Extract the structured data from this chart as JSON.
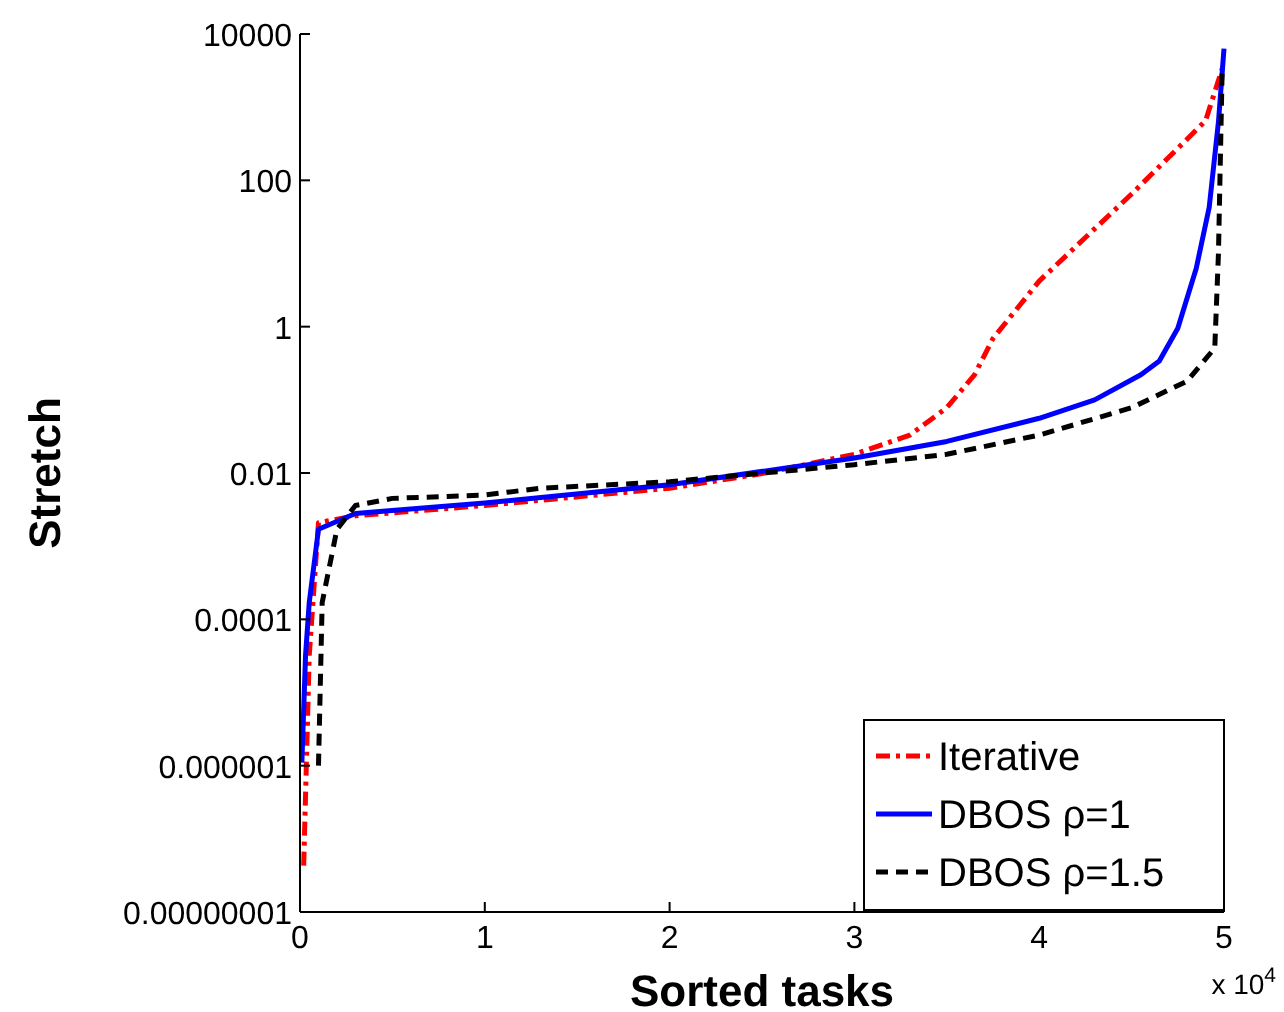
{
  "chart_data": {
    "type": "line",
    "xlabel": "Sorted tasks",
    "ylabel": "Stretch",
    "log": true,
    "legend": "bottom right",
    "xlim": [
      0,
      5
    ],
    "xticks": [
      0,
      1,
      2,
      3,
      4,
      5
    ],
    "ylim": [
      1e-08,
      10000
    ],
    "yticks": [
      {
        "value": 1e-08,
        "label": "0.00000001"
      },
      {
        "value": 1e-06,
        "label": "0.000001"
      },
      {
        "value": 0.0001,
        "label": "0.0001"
      },
      {
        "value": 0.01,
        "label": "0.01"
      },
      1,
      100,
      10000
    ],
    "annotations": [
      "x 10$^{4}$"
    ],
    "series": [
      {
        "name": "Iterative",
        "color": "#ff0000",
        "line_style": "dashdot",
        "x": [
          0.02,
          0.05,
          0.1,
          0.3,
          1,
          2,
          2.5,
          3,
          3.3,
          3.5,
          3.65,
          3.75,
          4,
          4.5,
          4.9,
          5
        ],
        "values": [
          4.3e-08,
          3.2e-05,
          0.0021,
          0.0026,
          0.0036,
          0.0062,
          0.0098,
          0.018,
          0.033,
          0.078,
          0.22,
          0.69,
          4.2,
          65,
          650,
          4000
        ]
      },
      {
        "name": "DBOS ρ=1",
        "color": "#0000ff",
        "line_style": "solid",
        "x": [
          0.01,
          0.03,
          0.05,
          0.1,
          0.3,
          1,
          2,
          3,
          3.5,
          4,
          4.3,
          4.55,
          4.65,
          4.75,
          4.85,
          4.92,
          4.97,
          5
        ],
        "values": [
          1.1e-06,
          3.2e-05,
          0.00017,
          0.0017,
          0.0028,
          0.0039,
          0.0069,
          0.016,
          0.027,
          0.056,
          0.1,
          0.22,
          0.34,
          0.95,
          6.3,
          43,
          630,
          6300
        ]
      },
      {
        "name": "DBOS ρ=1.5",
        "color": "#000000",
        "line_style": "dashed",
        "x": [
          0.1,
          0.12,
          0.2,
          0.3,
          0.5,
          1,
          1.3,
          2,
          3,
          3.5,
          4,
          4.5,
          4.8,
          4.95,
          4.97,
          4.99
        ],
        "values": [
          1e-06,
          0.00017,
          0.0017,
          0.0036,
          0.0045,
          0.005,
          0.0062,
          0.0076,
          0.013,
          0.018,
          0.033,
          0.078,
          0.18,
          0.51,
          10,
          3200
        ]
      }
    ]
  }
}
